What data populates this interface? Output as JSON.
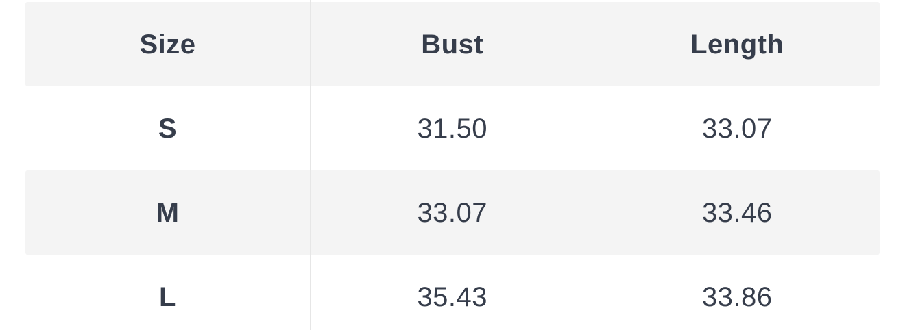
{
  "chart_data": {
    "type": "table",
    "columns": [
      "Size",
      "Bust",
      "Length"
    ],
    "rows": [
      [
        "S",
        "31.50",
        "33.07"
      ],
      [
        "M",
        "33.07",
        "33.46"
      ],
      [
        "L",
        "35.43",
        "33.86"
      ]
    ],
    "layout": {
      "striped": true,
      "stripe_pattern": [
        "shaded",
        "plain",
        "shaded",
        "plain"
      ],
      "column_divider_after": "Size"
    }
  },
  "colors": {
    "text": "#363d4b",
    "shaded_row_bg": "#f4f4f4",
    "plain_row_bg": "#ffffff",
    "divider": "#e6e6e6",
    "page_bg": "#ffffff"
  }
}
